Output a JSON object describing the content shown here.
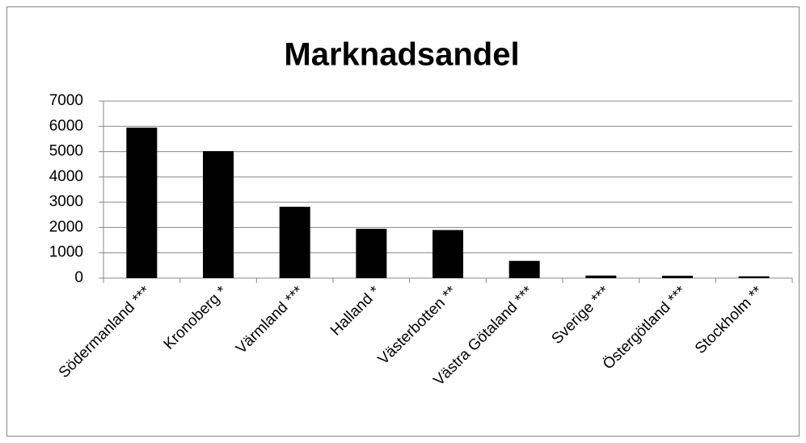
{
  "chart_data": {
    "type": "bar",
    "title": "Marknadsandel",
    "categories": [
      "Södermanland ***",
      "Kronoberg *",
      "Värmland ***",
      "Halland *",
      "Västerbotten **",
      "Västra Götaland ***",
      "Sverige ***",
      "Östergötland ***",
      "Stockholm **"
    ],
    "values": [
      5950,
      5020,
      2820,
      1950,
      1900,
      680,
      100,
      90,
      70
    ],
    "color": "#000000",
    "ylim": [
      0,
      7000
    ],
    "yticks": [
      0,
      1000,
      2000,
      3000,
      4000,
      5000,
      6000,
      7000
    ],
    "grid": true
  }
}
